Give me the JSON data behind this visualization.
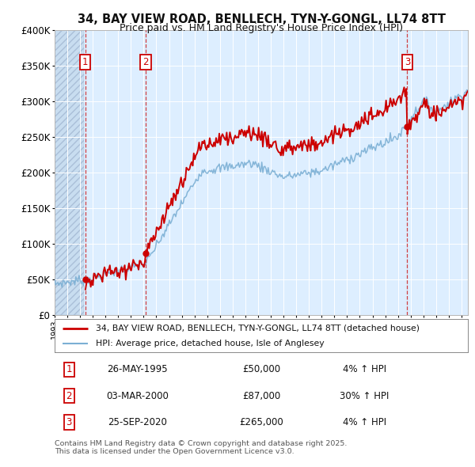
{
  "title": "34, BAY VIEW ROAD, BENLLECH, TYN-Y-GONGL, LL74 8TT",
  "subtitle": "Price paid vs. HM Land Registry's House Price Index (HPI)",
  "background_color": "#ffffff",
  "plot_bg_color": "#ddeeff",
  "grid_color": "#ffffff",
  "transactions": [
    {
      "num": 1,
      "date_x": 1995.4,
      "price": 50000,
      "date_str": "26-MAY-1995",
      "price_str": "£50,000",
      "pct": "4% ↑ HPI"
    },
    {
      "num": 2,
      "date_x": 2000.17,
      "price": 87000,
      "date_str": "03-MAR-2000",
      "price_str": "£87,000",
      "pct": "30% ↑ HPI"
    },
    {
      "num": 3,
      "date_x": 2020.73,
      "price": 265000,
      "date_str": "25-SEP-2020",
      "price_str": "£265,000",
      "pct": "4% ↑ HPI"
    }
  ],
  "legend_line1": "34, BAY VIEW ROAD, BENLLECH, TYN-Y-GONGL, LL74 8TT (detached house)",
  "legend_line2": "HPI: Average price, detached house, Isle of Anglesey",
  "footer": "Contains HM Land Registry data © Crown copyright and database right 2025.\nThis data is licensed under the Open Government Licence v3.0.",
  "ylim": [
    0,
    400000
  ],
  "xlim": [
    1993.0,
    2025.5
  ],
  "yticks": [
    0,
    50000,
    100000,
    150000,
    200000,
    250000,
    300000,
    350000,
    400000
  ],
  "ytick_labels": [
    "£0",
    "£50K",
    "£100K",
    "£150K",
    "£200K",
    "£250K",
    "£300K",
    "£350K",
    "£400K"
  ],
  "sold_line_color": "#cc0000",
  "hpi_line_color": "#7bafd4",
  "vline_color": "#cc2222",
  "number_box_color": "#cc0000",
  "hatch_region_end": 1995.3
}
